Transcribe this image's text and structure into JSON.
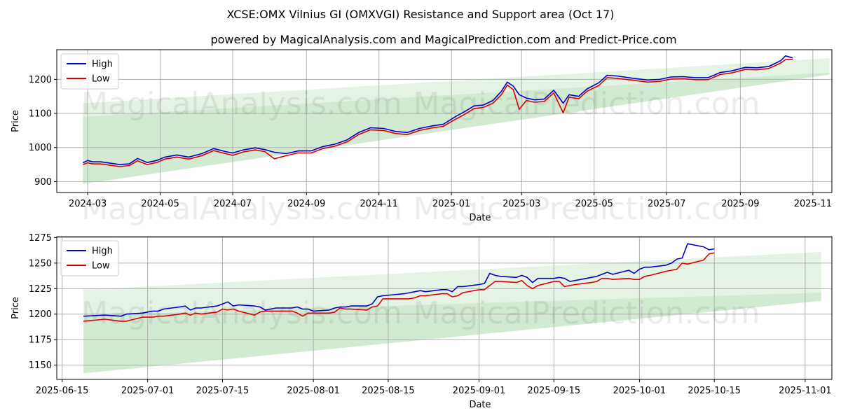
{
  "title": "XCSE:OMX Vilnius GI (OMXVGI) Resistance and Support area (Oct 17)",
  "subtitle": "powered by MagicalAnalysis.com and MagicalPrediction.com and Predict-Price.com",
  "watermarks": [
    "MagicalAnalysis.com",
    "MagicalPrediction.com"
  ],
  "colors": {
    "high": "#0000cc",
    "low": "#dd0000",
    "band": "#2ca02c",
    "grid": "#b0b0b0"
  },
  "chart_data": [
    {
      "type": "line",
      "name": "full-period",
      "xlabel": "Date",
      "ylabel": "Price",
      "legend": "top-left",
      "grid": true,
      "xlim": [
        "2024-02-04",
        "2025-11-17"
      ],
      "ylim": [
        868,
        1287
      ],
      "xticks": [
        {
          "date": "2024-03-01",
          "label": "2024-03"
        },
        {
          "date": "2024-05-01",
          "label": "2024-05"
        },
        {
          "date": "2024-07-01",
          "label": "2024-07"
        },
        {
          "date": "2024-09-01",
          "label": "2024-09"
        },
        {
          "date": "2024-11-01",
          "label": "2024-11"
        },
        {
          "date": "2025-01-01",
          "label": "2025-01"
        },
        {
          "date": "2025-03-01",
          "label": "2025-03"
        },
        {
          "date": "2025-05-01",
          "label": "2025-05"
        },
        {
          "date": "2025-07-01",
          "label": "2025-07"
        },
        {
          "date": "2025-09-01",
          "label": "2025-09"
        },
        {
          "date": "2025-11-01",
          "label": "2025-11"
        }
      ],
      "yticks": [
        900,
        1000,
        1100,
        1200
      ],
      "bands": [
        {
          "name": "resistance",
          "x": [
            "2024-02-26",
            "2025-11-15"
          ],
          "upper": [
            1130,
            1262
          ],
          "lower": [
            1090,
            1220
          ],
          "opacity": 0.12
        },
        {
          "name": "support",
          "x": [
            "2024-02-26",
            "2025-11-15"
          ],
          "upper": [
            1090,
            1220
          ],
          "lower": [
            893,
            1214
          ],
          "opacity": 0.22
        }
      ],
      "series": [
        {
          "name": "High",
          "color": "#0000cc",
          "x": [
            "2024-02-26",
            "2024-03-01",
            "2024-03-05",
            "2024-03-12",
            "2024-03-20",
            "2024-03-28",
            "2024-04-05",
            "2024-04-12",
            "2024-04-20",
            "2024-04-28",
            "2024-05-05",
            "2024-05-15",
            "2024-05-25",
            "2024-06-05",
            "2024-06-15",
            "2024-06-25",
            "2024-07-01",
            "2024-07-10",
            "2024-07-20",
            "2024-07-28",
            "2024-08-05",
            "2024-08-15",
            "2024-08-25",
            "2024-09-05",
            "2024-09-15",
            "2024-09-25",
            "2024-10-05",
            "2024-10-15",
            "2024-10-25",
            "2024-11-05",
            "2024-11-15",
            "2024-11-25",
            "2024-12-05",
            "2024-12-15",
            "2024-12-25",
            "2025-01-05",
            "2025-01-12",
            "2025-01-20",
            "2025-01-28",
            "2025-02-05",
            "2025-02-12",
            "2025-02-17",
            "2025-02-22",
            "2025-02-27",
            "2025-03-05",
            "2025-03-12",
            "2025-03-20",
            "2025-03-28",
            "2025-04-05",
            "2025-04-10",
            "2025-04-18",
            "2025-04-25",
            "2025-05-05",
            "2025-05-12",
            "2025-05-20",
            "2025-06-01",
            "2025-06-15",
            "2025-06-25",
            "2025-07-05",
            "2025-07-15",
            "2025-07-25",
            "2025-08-05",
            "2025-08-15",
            "2025-08-25",
            "2025-09-05",
            "2025-09-15",
            "2025-09-25",
            "2025-10-05",
            "2025-10-09",
            "2025-10-15"
          ],
          "values": [
            955,
            962,
            958,
            958,
            954,
            950,
            952,
            968,
            956,
            962,
            972,
            978,
            972,
            982,
            997,
            988,
            984,
            993,
            999,
            994,
            986,
            982,
            990,
            990,
            1003,
            1010,
            1022,
            1044,
            1058,
            1056,
            1047,
            1044,
            1056,
            1063,
            1068,
            1092,
            1105,
            1122,
            1125,
            1138,
            1165,
            1192,
            1180,
            1155,
            1145,
            1140,
            1142,
            1168,
            1130,
            1155,
            1150,
            1172,
            1190,
            1212,
            1210,
            1204,
            1198,
            1200,
            1207,
            1208,
            1205,
            1205,
            1220,
            1225,
            1235,
            1234,
            1238,
            1255,
            1269,
            1263
          ]
        },
        {
          "name": "Low",
          "color": "#dd0000",
          "x": [
            "2024-02-26",
            "2024-03-01",
            "2024-03-05",
            "2024-03-12",
            "2024-03-20",
            "2024-03-28",
            "2024-04-05",
            "2024-04-12",
            "2024-04-20",
            "2024-04-28",
            "2024-05-05",
            "2024-05-15",
            "2024-05-25",
            "2024-06-05",
            "2024-06-15",
            "2024-06-25",
            "2024-07-01",
            "2024-07-10",
            "2024-07-20",
            "2024-07-28",
            "2024-08-05",
            "2024-08-15",
            "2024-08-25",
            "2024-09-05",
            "2024-09-15",
            "2024-09-25",
            "2024-10-05",
            "2024-10-15",
            "2024-10-25",
            "2024-11-05",
            "2024-11-15",
            "2024-11-25",
            "2024-12-05",
            "2024-12-15",
            "2024-12-25",
            "2025-01-05",
            "2025-01-12",
            "2025-01-20",
            "2025-01-28",
            "2025-02-05",
            "2025-02-12",
            "2025-02-17",
            "2025-02-22",
            "2025-02-27",
            "2025-03-05",
            "2025-03-12",
            "2025-03-20",
            "2025-03-28",
            "2025-04-05",
            "2025-04-10",
            "2025-04-18",
            "2025-04-25",
            "2025-05-05",
            "2025-05-12",
            "2025-05-20",
            "2025-06-01",
            "2025-06-15",
            "2025-06-25",
            "2025-07-05",
            "2025-07-15",
            "2025-07-25",
            "2025-08-05",
            "2025-08-15",
            "2025-08-25",
            "2025-09-05",
            "2025-09-15",
            "2025-09-25",
            "2025-10-05",
            "2025-10-09",
            "2025-10-15"
          ],
          "values": [
            950,
            955,
            952,
            952,
            948,
            944,
            947,
            961,
            950,
            956,
            966,
            972,
            966,
            976,
            991,
            982,
            977,
            987,
            993,
            988,
            967,
            976,
            984,
            984,
            997,
            1004,
            1016,
            1038,
            1052,
            1050,
            1041,
            1038,
            1050,
            1057,
            1062,
            1084,
            1097,
            1114,
            1118,
            1130,
            1155,
            1183,
            1170,
            1112,
            1138,
            1133,
            1135,
            1160,
            1102,
            1148,
            1143,
            1165,
            1182,
            1205,
            1203,
            1198,
            1192,
            1194,
            1201,
            1202,
            1199,
            1199,
            1214,
            1219,
            1229,
            1228,
            1232,
            1248,
            1258,
            1258
          ]
        }
      ]
    },
    {
      "type": "line",
      "name": "recent-period",
      "xlabel": "Date",
      "ylabel": "Price",
      "legend": "top-left",
      "grid": true,
      "xlim": [
        "2025-06-14",
        "2025-11-06"
      ],
      "ylim": [
        1136,
        1276
      ],
      "xticks": [
        {
          "date": "2025-06-15",
          "label": "2025-06-15"
        },
        {
          "date": "2025-07-01",
          "label": "2025-07-01"
        },
        {
          "date": "2025-07-15",
          "label": "2025-07-15"
        },
        {
          "date": "2025-08-01",
          "label": "2025-08-01"
        },
        {
          "date": "2025-08-15",
          "label": "2025-08-15"
        },
        {
          "date": "2025-09-01",
          "label": "2025-09-01"
        },
        {
          "date": "2025-09-15",
          "label": "2025-09-15"
        },
        {
          "date": "2025-10-01",
          "label": "2025-10-01"
        },
        {
          "date": "2025-10-15",
          "label": "2025-10-15"
        },
        {
          "date": "2025-11-01",
          "label": "2025-11-01"
        }
      ],
      "yticks": [
        1150,
        1175,
        1200,
        1225,
        1250,
        1275
      ],
      "bands": [
        {
          "name": "resistance",
          "x": [
            "2025-06-19",
            "2025-11-04"
          ],
          "upper": [
            1224,
            1261
          ],
          "lower": [
            1199,
            1221
          ],
          "opacity": 0.12
        },
        {
          "name": "support",
          "x": [
            "2025-06-19",
            "2025-11-04"
          ],
          "upper": [
            1199,
            1221
          ],
          "lower": [
            1142,
            1213
          ],
          "opacity": 0.22
        }
      ],
      "series": [
        {
          "name": "High",
          "color": "#0000cc",
          "x": [
            "2025-06-19",
            "2025-06-23",
            "2025-06-26",
            "2025-06-27",
            "2025-06-30",
            "2025-07-01",
            "2025-07-02",
            "2025-07-03",
            "2025-07-04",
            "2025-07-07",
            "2025-07-08",
            "2025-07-09",
            "2025-07-10",
            "2025-07-11",
            "2025-07-14",
            "2025-07-15",
            "2025-07-16",
            "2025-07-17",
            "2025-07-18",
            "2025-07-21",
            "2025-07-22",
            "2025-07-23",
            "2025-07-24",
            "2025-07-25",
            "2025-07-28",
            "2025-07-29",
            "2025-07-30",
            "2025-07-31",
            "2025-08-01",
            "2025-08-04",
            "2025-08-05",
            "2025-08-06",
            "2025-08-07",
            "2025-08-08",
            "2025-08-11",
            "2025-08-12",
            "2025-08-13",
            "2025-08-14",
            "2025-08-18",
            "2025-08-19",
            "2025-08-20",
            "2025-08-21",
            "2025-08-22",
            "2025-08-25",
            "2025-08-26",
            "2025-08-27",
            "2025-08-28",
            "2025-08-29",
            "2025-09-01",
            "2025-09-02",
            "2025-09-03",
            "2025-09-04",
            "2025-09-05",
            "2025-09-08",
            "2025-09-09",
            "2025-09-10",
            "2025-09-11",
            "2025-09-12",
            "2025-09-15",
            "2025-09-16",
            "2025-09-17",
            "2025-09-18",
            "2025-09-19",
            "2025-09-22",
            "2025-09-23",
            "2025-09-24",
            "2025-09-25",
            "2025-09-26",
            "2025-09-29",
            "2025-09-30",
            "2025-10-01",
            "2025-10-02",
            "2025-10-03",
            "2025-10-06",
            "2025-10-07",
            "2025-10-08",
            "2025-10-09",
            "2025-10-10",
            "2025-10-13",
            "2025-10-14",
            "2025-10-15"
          ],
          "values": [
            1198,
            1199,
            1198,
            1200,
            1201,
            1202,
            1203,
            1203,
            1205,
            1207,
            1208,
            1204,
            1206,
            1206,
            1208,
            1210,
            1212,
            1208,
            1209,
            1208,
            1207,
            1204,
            1205,
            1206,
            1206,
            1207,
            1205,
            1205,
            1203,
            1204,
            1206,
            1207,
            1207,
            1208,
            1208,
            1210,
            1217,
            1218,
            1220,
            1221,
            1222,
            1223,
            1222,
            1224,
            1224,
            1222,
            1227,
            1227,
            1229,
            1230,
            1240,
            1238,
            1237,
            1236,
            1238,
            1236,
            1231,
            1235,
            1235,
            1236,
            1235,
            1232,
            1233,
            1236,
            1237,
            1239,
            1241,
            1239,
            1243,
            1240,
            1244,
            1246,
            1246,
            1248,
            1250,
            1254,
            1255,
            1269,
            1266,
            1263,
            1264
          ]
        },
        {
          "name": "Low",
          "color": "#dd0000",
          "x": [
            "2025-06-19",
            "2025-06-23",
            "2025-06-26",
            "2025-06-27",
            "2025-06-30",
            "2025-07-01",
            "2025-07-02",
            "2025-07-03",
            "2025-07-04",
            "2025-07-07",
            "2025-07-08",
            "2025-07-09",
            "2025-07-10",
            "2025-07-11",
            "2025-07-14",
            "2025-07-15",
            "2025-07-16",
            "2025-07-17",
            "2025-07-18",
            "2025-07-21",
            "2025-07-22",
            "2025-07-23",
            "2025-07-24",
            "2025-07-25",
            "2025-07-28",
            "2025-07-29",
            "2025-07-30",
            "2025-07-31",
            "2025-08-01",
            "2025-08-04",
            "2025-08-05",
            "2025-08-06",
            "2025-08-07",
            "2025-08-08",
            "2025-08-11",
            "2025-08-12",
            "2025-08-13",
            "2025-08-14",
            "2025-08-18",
            "2025-08-19",
            "2025-08-20",
            "2025-08-21",
            "2025-08-22",
            "2025-08-25",
            "2025-08-26",
            "2025-08-27",
            "2025-08-28",
            "2025-08-29",
            "2025-09-01",
            "2025-09-02",
            "2025-09-03",
            "2025-09-04",
            "2025-09-05",
            "2025-09-08",
            "2025-09-09",
            "2025-09-10",
            "2025-09-11",
            "2025-09-12",
            "2025-09-15",
            "2025-09-16",
            "2025-09-17",
            "2025-09-18",
            "2025-09-19",
            "2025-09-22",
            "2025-09-23",
            "2025-09-24",
            "2025-09-25",
            "2025-09-26",
            "2025-09-29",
            "2025-09-30",
            "2025-10-01",
            "2025-10-02",
            "2025-10-03",
            "2025-10-06",
            "2025-10-07",
            "2025-10-08",
            "2025-10-09",
            "2025-10-10",
            "2025-10-13",
            "2025-10-14",
            "2025-10-15"
          ],
          "values": [
            1193,
            1195,
            1193,
            1193,
            1197,
            1197,
            1197,
            1198,
            1198,
            1200,
            1201,
            1199,
            1201,
            1200,
            1202,
            1205,
            1204,
            1205,
            1203,
            1199,
            1202,
            1203,
            1203,
            1203,
            1203,
            1201,
            1198,
            1201,
            1201,
            1201,
            1202,
            1206,
            1205,
            1205,
            1204,
            1207,
            1208,
            1215,
            1215,
            1215,
            1216,
            1218,
            1218,
            1220,
            1220,
            1217,
            1218,
            1221,
            1224,
            1224,
            1228,
            1232,
            1232,
            1231,
            1233,
            1228,
            1225,
            1228,
            1232,
            1232,
            1227,
            1228,
            1229,
            1231,
            1232,
            1235,
            1235,
            1234,
            1235,
            1234,
            1234,
            1237,
            1238,
            1242,
            1243,
            1244,
            1250,
            1249,
            1253,
            1259,
            1260
          ]
        }
      ]
    }
  ]
}
